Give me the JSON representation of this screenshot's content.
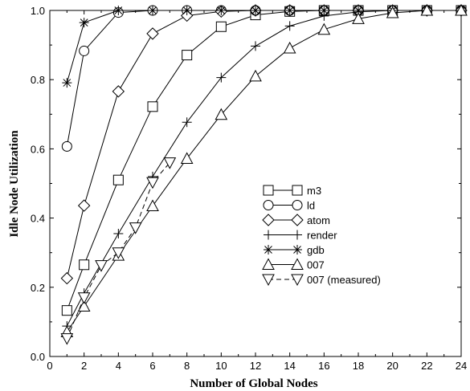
{
  "chart_data": {
    "type": "line",
    "title": "",
    "xlabel": "Number of Global Nodes",
    "ylabel": "Idle Node Utilization",
    "xlim": [
      0,
      24
    ],
    "ylim": [
      0,
      1.0
    ],
    "xticks": [
      0,
      2,
      4,
      6,
      8,
      10,
      12,
      14,
      16,
      18,
      20,
      22,
      24
    ],
    "yticks": [
      0.0,
      0.2,
      0.4,
      0.6,
      0.8,
      1.0
    ],
    "xtick_labels": [
      "0",
      "2",
      "4",
      "6",
      "8",
      "10",
      "12",
      "14",
      "16",
      "18",
      "20",
      "22",
      "24"
    ],
    "ytick_labels": [
      "0.0",
      "0.2",
      "0.4",
      "0.6",
      "0.8",
      "1.0"
    ],
    "grid": false,
    "legend_position": "center-right",
    "series": [
      {
        "name": "m3",
        "marker": "square",
        "dash": "solid",
        "x": [
          1,
          2,
          4,
          6,
          8,
          10,
          12,
          14,
          16,
          18,
          20,
          22,
          24
        ],
        "y": [
          0.133,
          0.265,
          0.51,
          0.722,
          0.871,
          0.953,
          0.987,
          0.997,
          1.0,
          1.0,
          1.0,
          1.0,
          1.0
        ]
      },
      {
        "name": "ld",
        "marker": "circle",
        "dash": "solid",
        "x": [
          1,
          2,
          4,
          6,
          8,
          10,
          12,
          14,
          16,
          18,
          20,
          22,
          24
        ],
        "y": [
          0.607,
          0.883,
          0.994,
          1.0,
          1.0,
          1.0,
          1.0,
          1.0,
          1.0,
          1.0,
          1.0,
          1.0,
          1.0
        ]
      },
      {
        "name": "atom",
        "marker": "diamond",
        "dash": "solid",
        "x": [
          1,
          2,
          4,
          6,
          8,
          10,
          12,
          14,
          16,
          18,
          20,
          22,
          24
        ],
        "y": [
          0.226,
          0.436,
          0.766,
          0.933,
          0.985,
          0.997,
          1.0,
          1.0,
          1.0,
          1.0,
          1.0,
          1.0,
          1.0
        ]
      },
      {
        "name": "render",
        "marker": "plus",
        "dash": "solid",
        "x": [
          1,
          2,
          4,
          6,
          8,
          10,
          12,
          14,
          16,
          18,
          20,
          22,
          24
        ],
        "y": [
          0.088,
          0.183,
          0.355,
          0.52,
          0.677,
          0.806,
          0.897,
          0.955,
          0.984,
          0.996,
          1.0,
          1.0,
          1.0
        ]
      },
      {
        "name": "gdb",
        "marker": "asterisk",
        "dash": "solid",
        "x": [
          1,
          2,
          4,
          6,
          8,
          10,
          12,
          14,
          16,
          18,
          20,
          22,
          24
        ],
        "y": [
          0.791,
          0.965,
          1.0,
          1.0,
          1.0,
          1.0,
          1.0,
          1.0,
          1.0,
          1.0,
          1.0,
          1.0,
          1.0
        ]
      },
      {
        "name": "007",
        "marker": "triangle-up",
        "dash": "solid",
        "x": [
          1,
          2,
          4,
          6,
          8,
          10,
          12,
          14,
          16,
          18,
          20,
          22,
          24
        ],
        "y": [
          0.071,
          0.145,
          0.292,
          0.435,
          0.572,
          0.699,
          0.81,
          0.891,
          0.945,
          0.976,
          0.993,
          1.0,
          1.0
        ]
      },
      {
        "name": "007 (measured)",
        "marker": "triangle-down",
        "dash": "dashed",
        "x": [
          1,
          2,
          3,
          4,
          5,
          6,
          7
        ],
        "y": [
          0.052,
          0.17,
          0.263,
          0.3,
          0.372,
          0.503,
          0.56
        ]
      }
    ]
  }
}
